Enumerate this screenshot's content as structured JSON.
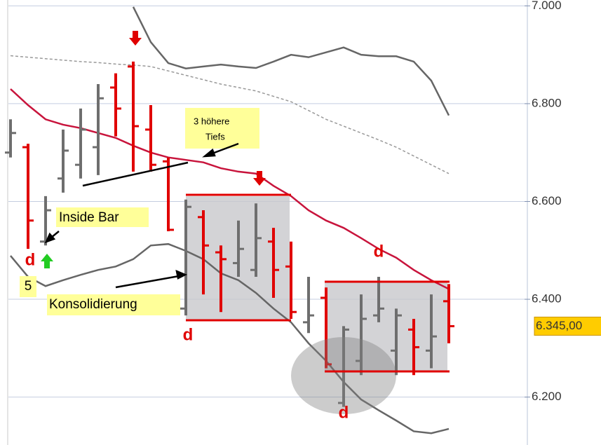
{
  "chart_data": {
    "type": "ohlc",
    "ylim": [
      6.102,
      7.012
    ],
    "yticks": [
      {
        "value": 7.0,
        "label": "7.000"
      },
      {
        "value": 6.8,
        "label": "6.800"
      },
      {
        "value": 6.6,
        "label": "6.600"
      },
      {
        "value": 6.4,
        "label": "6.400"
      },
      {
        "value": 6.2,
        "label": "6.200"
      }
    ],
    "grid": true,
    "up_color": "#6e6e6e",
    "down_color": "#e00000",
    "ohlc": {
      "open": [
        6.7,
        6.711,
        6.518,
        6.647,
        6.675,
        6.711,
        6.833,
        6.876,
        6.747,
        6.682,
        6.381,
        6.568,
        6.496,
        6.474,
        6.46,
        6.518,
        6.467,
        6.353,
        6.403,
        6.188,
        6.274,
        6.367,
        6.295,
        6.338,
        6.295,
        6.396
      ],
      "high": [
        6.768,
        6.718,
        6.611,
        6.747,
        6.79,
        6.84,
        6.862,
        6.886,
        6.797,
        6.69,
        6.604,
        6.582,
        6.51,
        6.561,
        6.596,
        6.546,
        6.518,
        6.446,
        6.424,
        6.345,
        6.41,
        6.446,
        6.381,
        6.36,
        6.41,
        6.431
      ],
      "low": [
        6.69,
        6.503,
        6.51,
        6.618,
        6.647,
        6.654,
        6.733,
        6.661,
        6.661,
        6.539,
        6.367,
        6.41,
        6.374,
        6.446,
        6.446,
        6.403,
        6.36,
        6.331,
        6.259,
        6.18,
        6.245,
        6.353,
        6.245,
        6.245,
        6.259,
        6.31
      ],
      "close": [
        6.74,
        6.561,
        6.582,
        6.704,
        6.747,
        6.811,
        6.79,
        6.754,
        6.675,
        6.542,
        6.589,
        6.51,
        6.482,
        6.503,
        6.525,
        6.46,
        6.374,
        6.367,
        6.267,
        6.338,
        6.36,
        6.381,
        6.367,
        6.302,
        6.324,
        6.345
      ]
    },
    "lines": [
      {
        "color": "#666666",
        "dash": false,
        "values": [
          null,
          null,
          null,
          null,
          null,
          null,
          null,
          6.998,
          6.926,
          6.883,
          6.872,
          6.876,
          6.88,
          6.876,
          6.873,
          6.886,
          6.9,
          6.895,
          6.905,
          6.915,
          6.9,
          6.897,
          6.897,
          6.886,
          6.847,
          6.776
        ]
      },
      {
        "color": "#999999",
        "dash": true,
        "values": [
          6.898,
          6.895,
          6.892,
          6.889,
          6.886,
          6.884,
          6.881,
          6.879,
          6.876,
          6.867,
          6.858,
          6.849,
          6.84,
          6.833,
          6.826,
          6.815,
          6.804,
          6.786,
          6.768,
          6.754,
          6.74,
          6.726,
          6.711,
          6.693,
          6.675,
          6.657
        ]
      },
      {
        "color": "#c8143c",
        "dash": false,
        "values": [
          6.83,
          6.797,
          6.768,
          6.757,
          6.75,
          6.74,
          6.73,
          6.714,
          6.7,
          6.69,
          6.685,
          6.68,
          6.668,
          6.661,
          6.657,
          6.632,
          6.611,
          6.582,
          6.561,
          6.546,
          6.525,
          6.503,
          6.485,
          6.46,
          6.439,
          6.421
        ]
      },
      {
        "color": "#666666",
        "dash": false,
        "values": [
          6.489,
          6.446,
          6.427,
          6.439,
          6.45,
          6.46,
          6.467,
          6.482,
          6.51,
          6.513,
          6.499,
          6.482,
          6.453,
          6.439,
          6.413,
          6.381,
          6.353,
          6.31,
          6.274,
          6.231,
          6.195,
          6.173,
          6.152,
          6.13,
          6.126,
          6.135
        ]
      }
    ],
    "price_label": "6.345,00",
    "annotations": [
      "d",
      "d",
      "d",
      "d",
      "5",
      "Inside Bar",
      "Konsolidierung",
      "3 höhere",
      "Tiefs"
    ]
  }
}
